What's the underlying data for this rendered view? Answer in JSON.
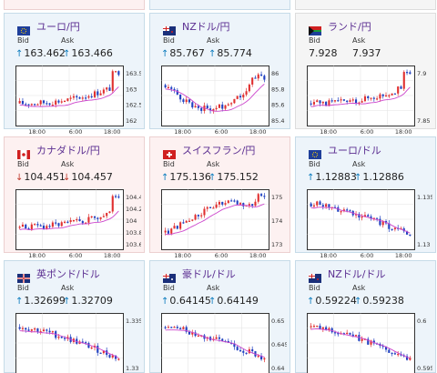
{
  "labels": {
    "bid": "Bid",
    "ask": "Ask"
  },
  "colors": {
    "up_arrow": "#0a7bbd",
    "down_arrow": "#c0392b",
    "pair_text": "#5b2e91",
    "ma_line": "#cc44cc",
    "bull": "#e03030",
    "bear": "#2040c0"
  },
  "cards": [
    {
      "name": "eur-jpy",
      "pair": "ユーロ/円",
      "flag": "eu",
      "bid": "163.462",
      "ask": "163.466",
      "bid_dir": "up",
      "ask_dir": "up",
      "chart": {
        "yticks": [
          "163.5",
          "163",
          "162.5",
          "162"
        ],
        "xticks": [
          "18:00",
          "6:00",
          "18:00"
        ],
        "trend": "up"
      }
    },
    {
      "name": "nzd-jpy",
      "pair": "NZドル/円",
      "flag": "nz",
      "bid": "85.767",
      "ask": "85.774",
      "bid_dir": "up",
      "ask_dir": "up",
      "chart": {
        "yticks": [
          "86",
          "85.8",
          "85.6",
          "85.4"
        ],
        "xticks": [
          "18:00",
          "6:00",
          "18:00"
        ],
        "trend": "vdip"
      }
    },
    {
      "name": "zar-jpy",
      "pair": "ランド/円",
      "flag": "za",
      "bid": "7.928",
      "ask": "7.937",
      "bid_dir": "",
      "ask_dir": "",
      "chart": {
        "yticks": [
          "7.9",
          "7.85"
        ],
        "xticks": [
          "18:00",
          "6:00",
          "18:00"
        ],
        "trend": "up"
      }
    },
    {
      "name": "cad-jpy",
      "pair": "カナダドル/円",
      "flag": "ca",
      "bid": "104.451",
      "ask": "104.457",
      "bid_dir": "down",
      "ask_dir": "down",
      "chart": {
        "yticks": [
          "104.4",
          "104.2",
          "104",
          "103.8",
          "103.6"
        ],
        "xticks": [
          "18:00",
          "6:00",
          "18:00"
        ],
        "trend": "up"
      }
    },
    {
      "name": "chf-jpy",
      "pair": "スイスフラン/円",
      "flag": "ch",
      "bid": "175.136",
      "ask": "175.152",
      "bid_dir": "up",
      "ask_dir": "up",
      "chart": {
        "yticks": [
          "175",
          "174",
          "173"
        ],
        "xticks": [
          "18:00",
          "6:00",
          "18:00"
        ],
        "trend": "upflat"
      }
    },
    {
      "name": "eur-usd",
      "pair": "ユーロ/ドル",
      "flag": "eu",
      "bid": "1.12883",
      "ask": "1.12886",
      "bid_dir": "up",
      "ask_dir": "up",
      "chart": {
        "yticks": [
          "1.135",
          "1.13"
        ],
        "xticks": [
          "18:00",
          "6:00",
          "18:00"
        ],
        "trend": "down"
      }
    },
    {
      "name": "gbp-usd",
      "pair": "英ポンド/ドル",
      "flag": "gb",
      "bid": "1.32699",
      "ask": "1.32709",
      "bid_dir": "up",
      "ask_dir": "up",
      "chart": {
        "yticks": [
          "1.335",
          "1.33"
        ],
        "xticks": [],
        "trend": "down"
      }
    },
    {
      "name": "aud-usd",
      "pair": "豪ドル/ドル",
      "flag": "au",
      "bid": "0.64145",
      "ask": "0.64149",
      "bid_dir": "up",
      "ask_dir": "up",
      "chart": {
        "yticks": [
          "0.65",
          "0.645",
          "0.64"
        ],
        "xticks": [],
        "trend": "down"
      }
    },
    {
      "name": "nzd-usd",
      "pair": "NZドル/ドル",
      "flag": "nz",
      "bid": "0.59224",
      "ask": "0.59238",
      "bid_dir": "up",
      "ask_dir": "up",
      "chart": {
        "yticks": [
          "0.6",
          "0.595"
        ],
        "xticks": [],
        "trend": "down"
      }
    }
  ]
}
